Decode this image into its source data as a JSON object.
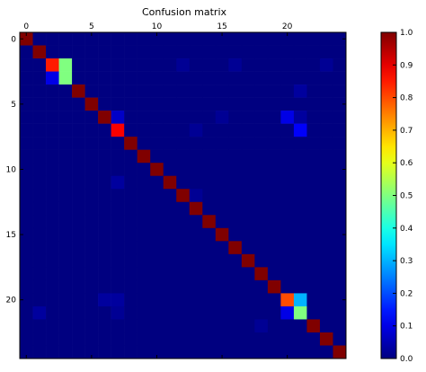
{
  "chart_data": {
    "type": "heatmap",
    "title": "Confusion matrix",
    "xlabel": "",
    "ylabel": "",
    "rows": 25,
    "cols": 25,
    "x_ticks": [
      0,
      5,
      10,
      15,
      20
    ],
    "y_ticks": [
      0,
      5,
      10,
      15,
      20
    ],
    "x_tick_labels": [
      "0",
      "5",
      "10",
      "15",
      "20"
    ],
    "y_tick_labels": [
      "0",
      "5",
      "10",
      "15",
      "20"
    ],
    "colormap": "jet",
    "vmin": 0.0,
    "vmax": 1.0,
    "colorbar_ticks": [
      0.0,
      0.1,
      0.2,
      0.3,
      0.4,
      0.5,
      0.6,
      0.7,
      0.8,
      0.9,
      1.0
    ],
    "colorbar_labels": [
      "0.0",
      "0.1",
      "0.2",
      "0.3",
      "0.4",
      "0.5",
      "0.6",
      "0.7",
      "0.8",
      "0.9",
      "1.0"
    ],
    "background_value": 0.0,
    "diagonal_value": 1.0,
    "cells": [
      {
        "row": 2,
        "col": 2,
        "value": 0.85
      },
      {
        "row": 2,
        "col": 3,
        "value": 0.5
      },
      {
        "row": 3,
        "col": 2,
        "value": 0.1
      },
      {
        "row": 3,
        "col": 3,
        "value": 0.5
      },
      {
        "row": 2,
        "col": 12,
        "value": 0.02
      },
      {
        "row": 2,
        "col": 16,
        "value": 0.02
      },
      {
        "row": 2,
        "col": 23,
        "value": 0.02
      },
      {
        "row": 4,
        "col": 21,
        "value": 0.03
      },
      {
        "row": 6,
        "col": 7,
        "value": 0.07
      },
      {
        "row": 6,
        "col": 15,
        "value": 0.02
      },
      {
        "row": 6,
        "col": 20,
        "value": 0.1
      },
      {
        "row": 6,
        "col": 21,
        "value": 0.03
      },
      {
        "row": 7,
        "col": 7,
        "value": 0.88
      },
      {
        "row": 7,
        "col": 13,
        "value": 0.02
      },
      {
        "row": 7,
        "col": 21,
        "value": 0.12
      },
      {
        "row": 11,
        "col": 7,
        "value": 0.03
      },
      {
        "row": 12,
        "col": 13,
        "value": 0.02
      },
      {
        "row": 20,
        "col": 6,
        "value": 0.03
      },
      {
        "row": 20,
        "col": 7,
        "value": 0.03
      },
      {
        "row": 20,
        "col": 20,
        "value": 0.8
      },
      {
        "row": 20,
        "col": 21,
        "value": 0.3
      },
      {
        "row": 21,
        "col": 1,
        "value": 0.03
      },
      {
        "row": 21,
        "col": 7,
        "value": 0.02
      },
      {
        "row": 21,
        "col": 20,
        "value": 0.1
      },
      {
        "row": 21,
        "col": 21,
        "value": 0.5
      },
      {
        "row": 22,
        "col": 18,
        "value": 0.02
      }
    ]
  }
}
